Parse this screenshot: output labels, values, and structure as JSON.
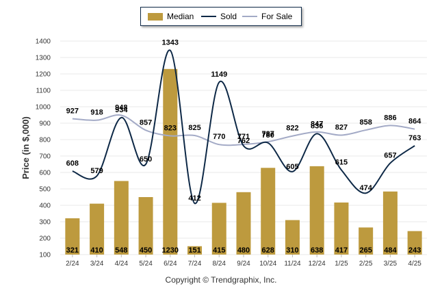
{
  "legend": {
    "median_label": "Median",
    "sold_label": "Sold",
    "forsale_label": "For Sale"
  },
  "footer": {
    "copyright": "Copyright © Trendgraphix, Inc."
  },
  "colors": {
    "median_bar": "#bd9a3e",
    "sold_line": "#0d2846",
    "forsale_line": "#a3aac6",
    "grid": "#e8e8e8"
  },
  "chart_data": {
    "type": "bar",
    "title": "",
    "xlabel": "",
    "ylabel": "Price (in $,000)",
    "ylim": [
      100,
      1400
    ],
    "yticks": [
      100,
      200,
      300,
      400,
      500,
      600,
      700,
      800,
      900,
      1000,
      1100,
      1200,
      1300,
      1400
    ],
    "grid": true,
    "legend_position": "top-center",
    "categories": [
      "2/24",
      "3/24",
      "4/24",
      "5/24",
      "6/24",
      "7/24",
      "8/24",
      "9/24",
      "10/24",
      "11/24",
      "12/24",
      "1/25",
      "2/25",
      "3/25",
      "4/25"
    ],
    "series": [
      {
        "name": "Median",
        "type": "bar",
        "values": [
          321,
          410,
          548,
          450,
          1230,
          151,
          415,
          480,
          628,
          310,
          638,
          417,
          265,
          484,
          243
        ]
      },
      {
        "name": "Sold",
        "type": "line",
        "values": [
          608,
          579,
          934,
          650,
          1343,
          412,
          1149,
          762,
          780,
          605,
          836,
          615,
          474,
          657,
          763
        ]
      },
      {
        "name": "For Sale",
        "type": "line",
        "values": [
          927,
          918,
          948,
          857,
          823,
          825,
          770,
          771,
          787,
          822,
          847,
          827,
          858,
          886,
          864
        ]
      }
    ]
  }
}
